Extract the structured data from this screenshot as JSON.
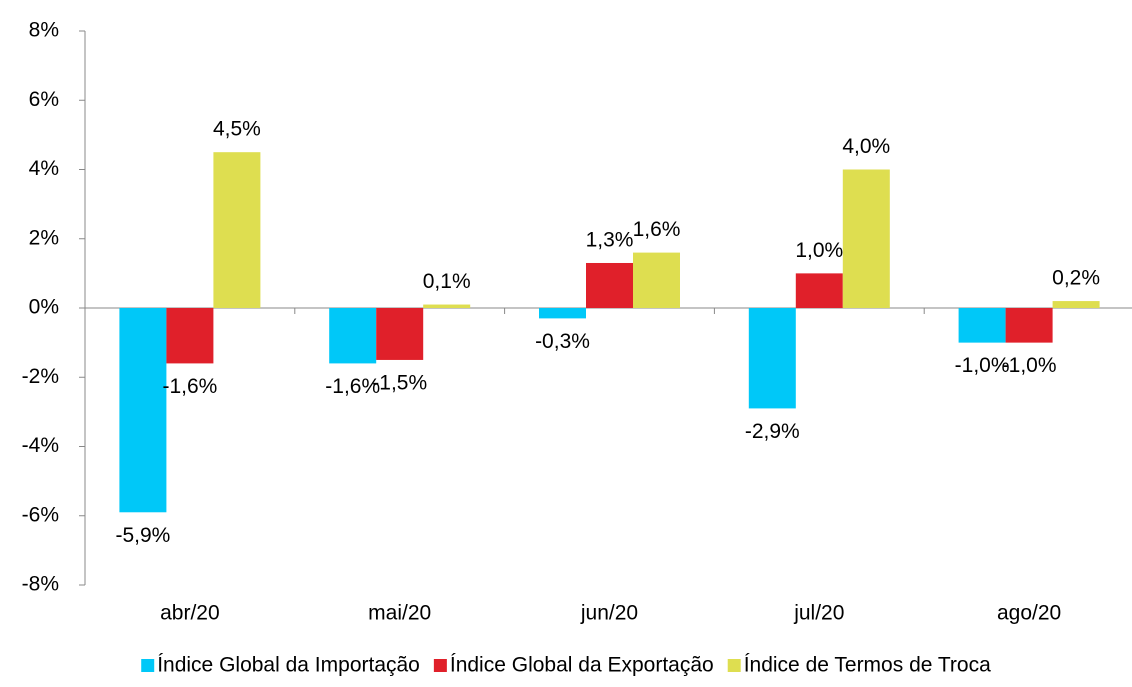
{
  "chart_data": {
    "type": "bar",
    "categories": [
      "abr/20",
      "mai/20",
      "jun/20",
      "jul/20",
      "ago/20"
    ],
    "series": [
      {
        "name": "Índice Global da Importação",
        "color": "#00c8f8",
        "values": [
          -5.9,
          -1.6,
          -0.3,
          -2.9,
          -1.0
        ],
        "value_labels": [
          "-5,9%",
          "-1,6%",
          "-0,3%",
          "-2,9%",
          "-1,0%"
        ]
      },
      {
        "name": "Índice Global da Exportação",
        "color": "#e0202a",
        "values": [
          -1.6,
          -1.5,
          1.3,
          1.0,
          -1.0
        ],
        "value_labels": [
          "-1,6%",
          "-1,5%",
          "1,3%",
          "1,0%",
          "-1,0%"
        ]
      },
      {
        "name": "Índice de Termos de Troca",
        "color": "#dede50",
        "values": [
          4.5,
          0.1,
          1.6,
          4.0,
          0.2
        ],
        "value_labels": [
          "4,5%",
          "0,1%",
          "1,6%",
          "4,0%",
          "0,2%"
        ]
      }
    ],
    "ylim": [
      -8,
      8
    ],
    "yticks": [
      {
        "value": -8,
        "label": "-8%"
      },
      {
        "value": -6,
        "label": "-6%"
      },
      {
        "value": -4,
        "label": "-4%"
      },
      {
        "value": -2,
        "label": "-2%"
      },
      {
        "value": 0,
        "label": "0%"
      },
      {
        "value": 2,
        "label": "2%"
      },
      {
        "value": 4,
        "label": "4%"
      },
      {
        "value": 6,
        "label": "6%"
      },
      {
        "value": 8,
        "label": "8%"
      }
    ],
    "grid": false,
    "legend": "bottom"
  }
}
